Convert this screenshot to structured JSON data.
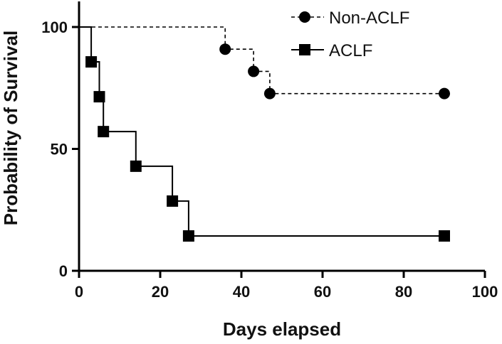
{
  "chart_data": {
    "type": "line",
    "subtype": "kaplan-meier",
    "title": "",
    "xlabel": "Days elapsed",
    "ylabel": "Probability of Survival",
    "xlim": [
      0,
      100
    ],
    "ylim": [
      0,
      100
    ],
    "xticks": [
      "0",
      "20",
      "40",
      "60",
      "80",
      "100"
    ],
    "yticks": [
      "0",
      "50",
      "100"
    ],
    "legend_position": "top-right",
    "series": [
      {
        "name": "Non-ACLF",
        "marker": "circle",
        "line_style": "dashed",
        "color": "#000000",
        "points": [
          [
            0,
            100
          ],
          [
            36,
            90.9
          ],
          [
            43,
            81.8
          ],
          [
            47,
            72.7
          ],
          [
            90,
            72.7
          ]
        ]
      },
      {
        "name": "ACLF",
        "marker": "square",
        "line_style": "solid",
        "color": "#000000",
        "points": [
          [
            0,
            100
          ],
          [
            3,
            85.7
          ],
          [
            5,
            71.4
          ],
          [
            6,
            57.1
          ],
          [
            14,
            42.9
          ],
          [
            23,
            28.6
          ],
          [
            27,
            14.3
          ],
          [
            90,
            14.3
          ]
        ]
      }
    ]
  }
}
